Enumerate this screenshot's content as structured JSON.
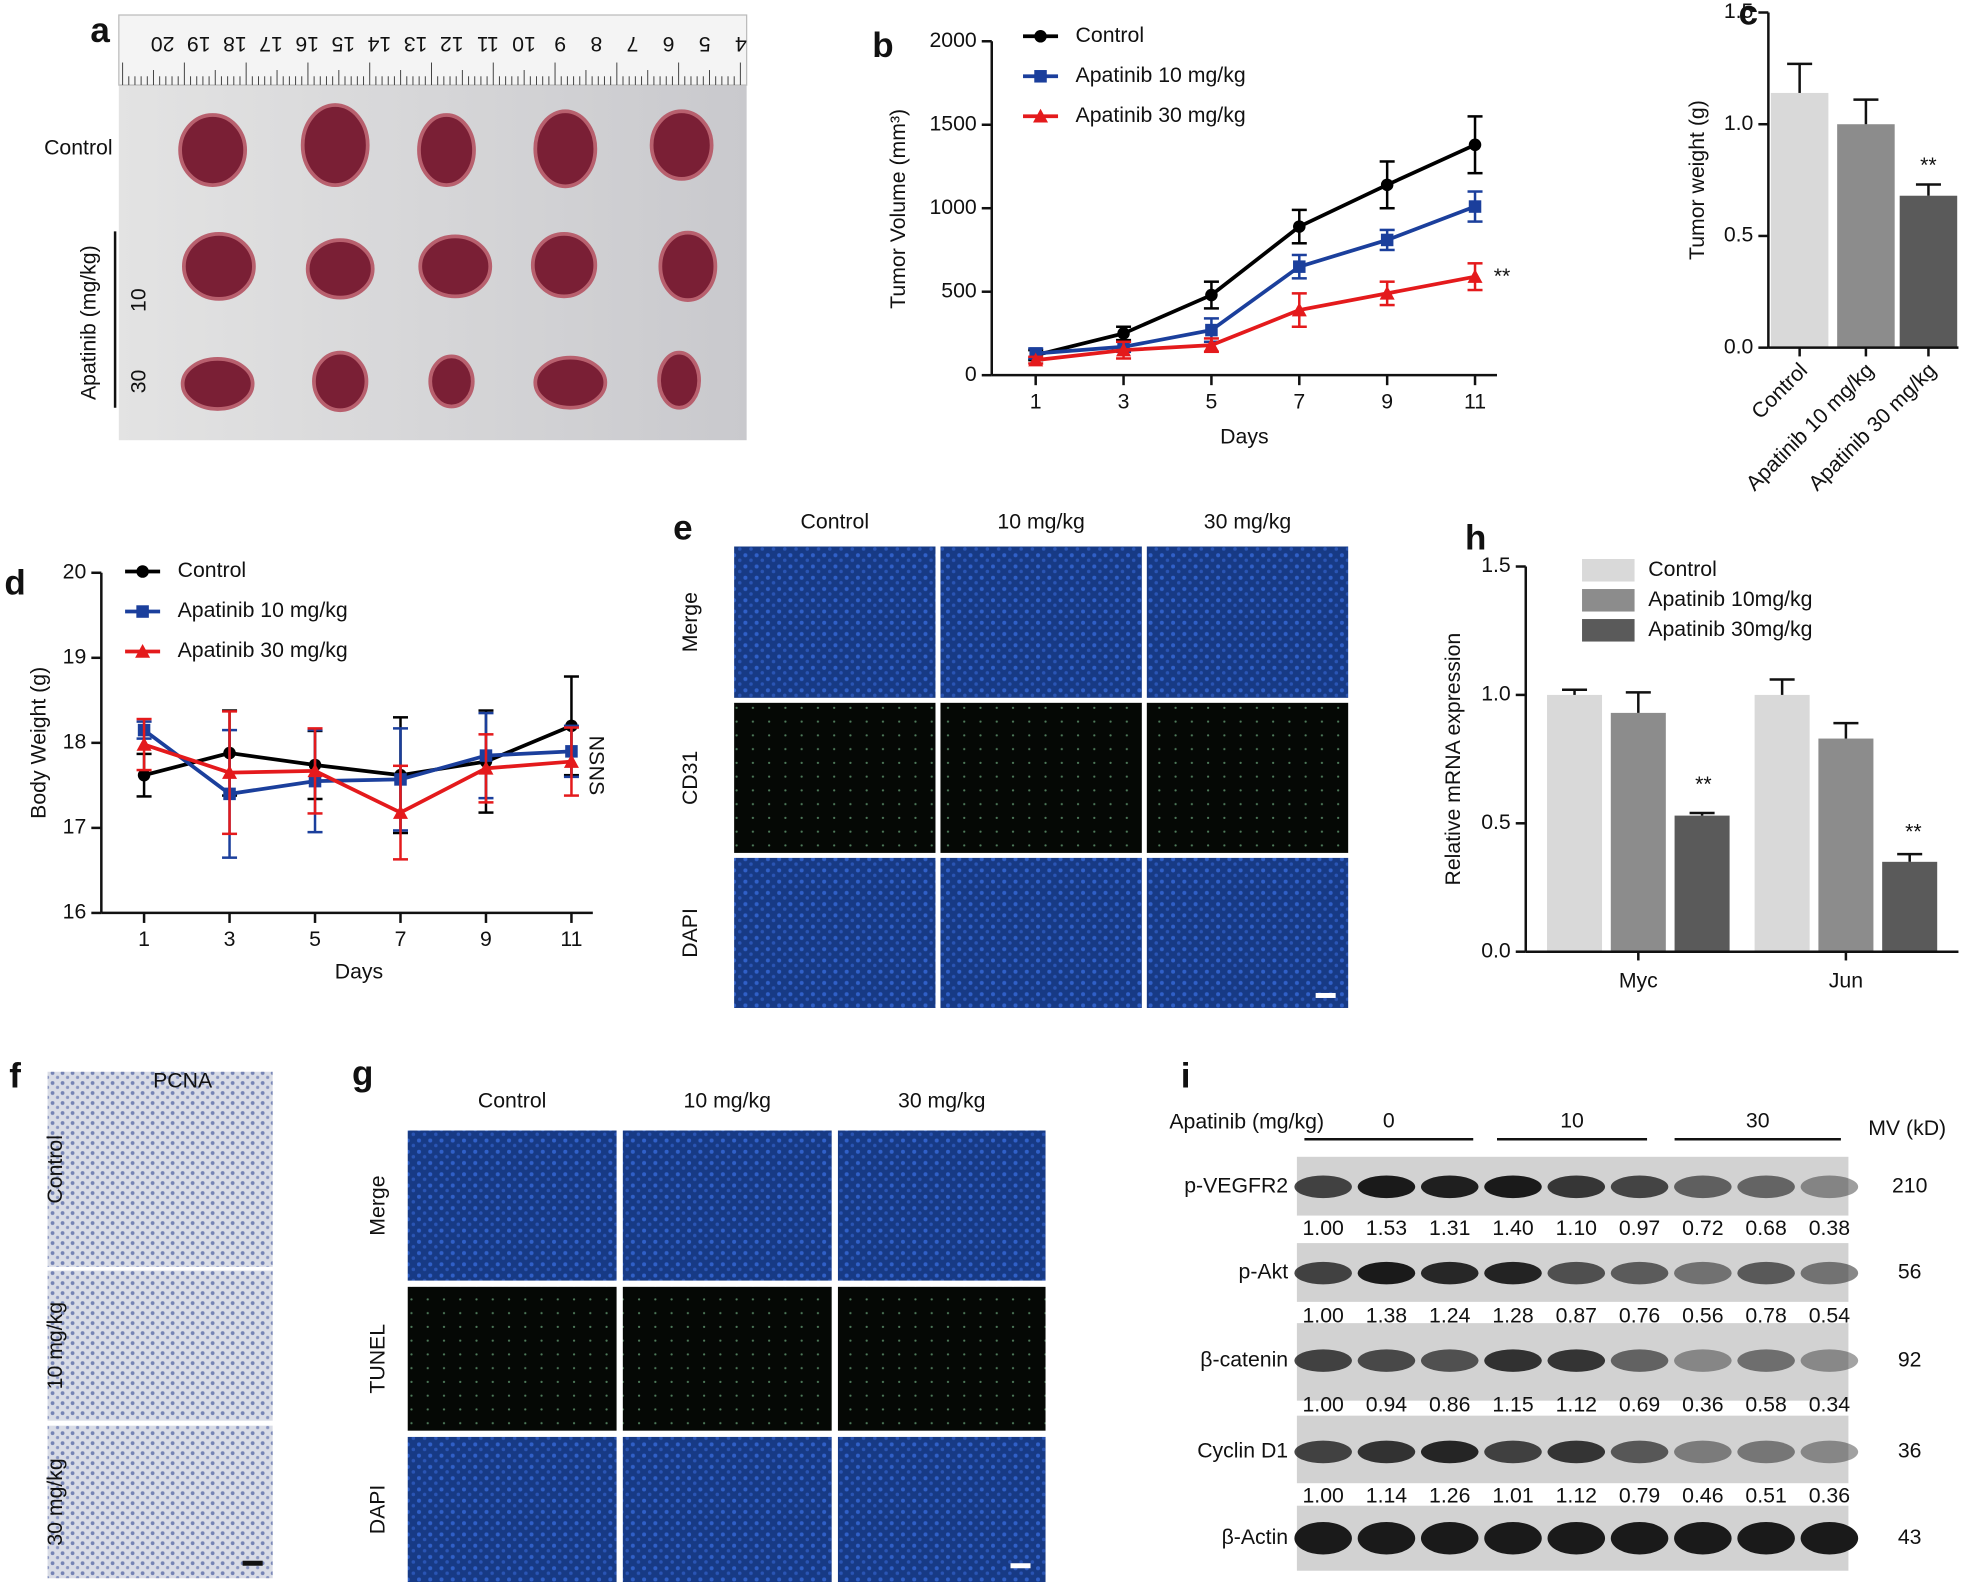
{
  "panel_letters": [
    "a",
    "b",
    "c",
    "d",
    "e",
    "f",
    "g",
    "h",
    "i"
  ],
  "panel_a": {
    "ruler": [
      20,
      19,
      18,
      17,
      16,
      15,
      14,
      13,
      12,
      11,
      10,
      9,
      8,
      7,
      6,
      5,
      4
    ],
    "row_label": "Control",
    "group_label": "Apatinib (mg/kg)",
    "doses": [
      "10",
      "30"
    ]
  },
  "chart_data": [
    {
      "type": "line",
      "x_label": "Days",
      "y_label": "Tumor Volume (mm³)",
      "x": [
        1,
        3,
        5,
        7,
        9,
        11
      ],
      "xlim": [
        0,
        11.5
      ],
      "xticks": [
        1,
        3,
        5,
        7,
        9,
        11
      ],
      "ylim": [
        0,
        2000
      ],
      "yticks": [
        0,
        500,
        1000,
        1500,
        2000
      ],
      "series": [
        {
          "name": "Control",
          "color": "#000000",
          "marker": "circle",
          "values": [
            120,
            250,
            480,
            890,
            1140,
            1380
          ],
          "errors": [
            30,
            40,
            80,
            100,
            140,
            170
          ]
        },
        {
          "name": "Apatinib 10 mg/kg",
          "color": "#1b3f9c",
          "marker": "square",
          "values": [
            130,
            170,
            270,
            650,
            810,
            1010
          ],
          "errors": [
            30,
            30,
            70,
            70,
            60,
            90
          ]
        },
        {
          "name": "Apatinib 30 mg/kg",
          "color": "#e41a1c",
          "marker": "triangle",
          "values": [
            90,
            150,
            180,
            390,
            490,
            590
          ],
          "errors": [
            20,
            50,
            40,
            100,
            70,
            80
          ]
        }
      ],
      "annotations": [
        "**"
      ]
    },
    {
      "type": "bar",
      "y_label": "Tumor weight (g)",
      "categories": [
        "Control",
        "Apatinib 10 mg/kg",
        "Apatinib 30 mg/kg"
      ],
      "values": [
        1.14,
        1.0,
        0.68
      ],
      "errors": [
        0.13,
        0.11,
        0.05
      ],
      "colors": [
        "#d9d9d9",
        "#8c8c8c",
        "#5a5a5a"
      ],
      "ylim": [
        0,
        1.5
      ],
      "yticks": [
        {
          "value": 0,
          "label": "0.0"
        },
        {
          "value": 0.5,
          "label": "0.5"
        },
        {
          "value": 1,
          "label": "1.0"
        },
        {
          "value": 1.5,
          "label": "1.5"
        }
      ],
      "annotations": [
        "**"
      ]
    },
    {
      "type": "line",
      "x_label": "Days",
      "y_label": "Body Weight (g)",
      "x": [
        1,
        3,
        5,
        7,
        9,
        11
      ],
      "xlim": [
        0,
        11.5
      ],
      "xticks": [
        1,
        3,
        5,
        7,
        9,
        11
      ],
      "ylim": [
        16,
        20
      ],
      "yticks": [
        16,
        17,
        18,
        19,
        20
      ],
      "series": [
        {
          "name": "Control",
          "color": "#000000",
          "marker": "circle",
          "values": [
            17.62,
            17.88,
            17.74,
            17.62,
            17.78,
            18.2
          ],
          "errors": [
            0.25,
            0.5,
            0.4,
            0.68,
            0.6,
            0.58
          ]
        },
        {
          "name": "Apatinib 10 mg/kg",
          "color": "#1b3f9c",
          "marker": "square",
          "values": [
            18.15,
            17.4,
            17.55,
            17.57,
            17.85,
            17.9
          ],
          "errors": [
            0.1,
            0.75,
            0.6,
            0.6,
            0.5,
            0.3
          ]
        },
        {
          "name": "Apatinib 30 mg/kg",
          "color": "#e41a1c",
          "marker": "triangle",
          "values": [
            17.98,
            17.65,
            17.67,
            17.18,
            17.7,
            17.78
          ],
          "errors": [
            0.3,
            0.72,
            0.5,
            0.55,
            0.4,
            0.4
          ]
        }
      ],
      "annotations": [
        "NS",
        "NS"
      ]
    },
    {
      "type": "grouped_bar",
      "y_label": "Relative mRNA expression",
      "categories": [
        "Myc",
        "Jun"
      ],
      "series": [
        {
          "name": "Control",
          "color": "#d9d9d9",
          "values": [
            1.0,
            1.0
          ],
          "errors": [
            0.02,
            0.06
          ]
        },
        {
          "name": "Apatinib 10mg/kg",
          "color": "#8c8c8c",
          "values": [
            0.93,
            0.83
          ],
          "errors": [
            0.08,
            0.06
          ]
        },
        {
          "name": "Apatinib 30mg/kg",
          "color": "#5a5a5a",
          "values": [
            0.53,
            0.35
          ],
          "errors": [
            0.01,
            0.03
          ]
        }
      ],
      "ylim": [
        0,
        1.5
      ],
      "yticks": [
        {
          "value": 0,
          "label": "0.0"
        },
        {
          "value": 0.5,
          "label": "0.5"
        },
        {
          "value": 1,
          "label": "1.0"
        },
        {
          "value": 1.5,
          "label": "1.5"
        }
      ],
      "annotations": [
        "**",
        "**"
      ]
    }
  ],
  "panel_e": {
    "columns": [
      "Control",
      "10 mg/kg",
      "30 mg/kg"
    ],
    "rows": [
      "Merge",
      "CD31",
      "DAPI"
    ]
  },
  "panel_f": {
    "title": "PCNA",
    "rows": [
      "Control",
      "10 mg/kg",
      "30 mg/kg"
    ]
  },
  "panel_g": {
    "columns": [
      "Control",
      "10 mg/kg",
      "30 mg/kg"
    ],
    "rows": [
      "Merge",
      "TUNEL",
      "DAPI"
    ]
  },
  "panel_i": {
    "treatment_label": "Apatinib (mg/kg)",
    "doses": [
      "0",
      "10",
      "30"
    ],
    "mw_header": "MV (kD)",
    "rows": [
      {
        "name": "p-VEGFR2",
        "mw": "210",
        "quant": [
          "1.00",
          "1.53",
          "1.31",
          "1.40",
          "1.10",
          "0.97",
          "0.72",
          "0.68",
          "0.38"
        ]
      },
      {
        "name": "p-Akt",
        "mw": "56",
        "quant": [
          "1.00",
          "1.38",
          "1.24",
          "1.28",
          "0.87",
          "0.76",
          "0.56",
          "0.78",
          "0.54"
        ]
      },
      {
        "name": "β-catenin",
        "mw": "92",
        "quant": [
          "1.00",
          "0.94",
          "0.86",
          "1.15",
          "1.12",
          "0.69",
          "0.36",
          "0.58",
          "0.34"
        ]
      },
      {
        "name": "Cyclin D1",
        "mw": "36",
        "quant": [
          "1.00",
          "1.14",
          "1.26",
          "1.01",
          "1.12",
          "0.79",
          "0.46",
          "0.51",
          "0.36"
        ]
      },
      {
        "name": "β-Actin",
        "mw": "43"
      }
    ]
  }
}
